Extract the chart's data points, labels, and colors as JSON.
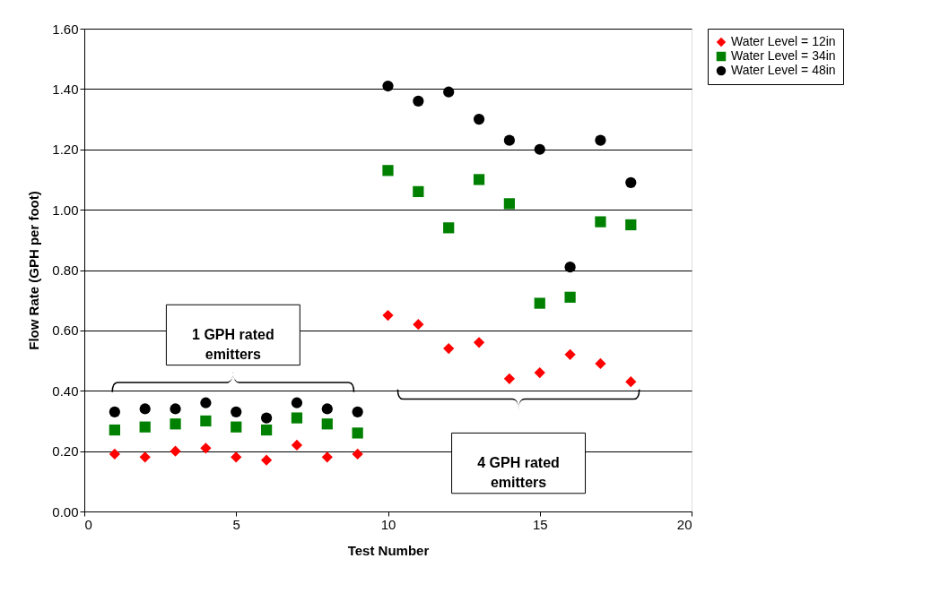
{
  "chart_data": {
    "type": "scatter",
    "xlabel": "Test Number",
    "ylabel": "Flow Rate (GPH per foot)",
    "x": [
      1,
      2,
      3,
      4,
      5,
      6,
      7,
      8,
      9,
      10,
      11,
      12,
      13,
      14,
      15,
      16,
      17,
      18
    ],
    "series": [
      {
        "name": "Water Level = 12in",
        "color": "#ff0000",
        "marker": "diamond",
        "values": [
          0.19,
          0.18,
          0.2,
          0.21,
          0.18,
          0.17,
          0.22,
          0.18,
          0.19,
          0.65,
          0.62,
          0.54,
          0.56,
          0.44,
          0.46,
          0.52,
          0.49,
          0.43
        ]
      },
      {
        "name": "Water Level = 34in",
        "color": "#008000",
        "marker": "square",
        "values": [
          0.27,
          0.28,
          0.29,
          0.3,
          0.28,
          0.27,
          0.31,
          0.29,
          0.26,
          1.13,
          1.06,
          0.94,
          1.1,
          1.02,
          0.69,
          0.71,
          0.96,
          0.95
        ]
      },
      {
        "name": "Water Level = 48in",
        "color": "#000000",
        "marker": "circle",
        "values": [
          0.33,
          0.34,
          0.34,
          0.36,
          0.33,
          0.31,
          0.36,
          0.34,
          0.33,
          1.41,
          1.36,
          1.39,
          1.3,
          1.23,
          1.2,
          0.81,
          1.23,
          1.09
        ]
      }
    ],
    "xlim": [
      0,
      20
    ],
    "xticks": [
      0,
      5,
      10,
      15,
      20
    ],
    "ylim": [
      0,
      1.6
    ],
    "yticks": [
      {
        "value": 0,
        "label": "0.00"
      },
      {
        "value": 0.2,
        "label": "0.20"
      },
      {
        "value": 0.4,
        "label": "0.40"
      },
      {
        "value": 0.6,
        "label": "0.60"
      },
      {
        "value": 0.8,
        "label": "0.80"
      },
      {
        "value": 1.0,
        "label": "1.00"
      },
      {
        "value": 1.2,
        "label": "1.20"
      },
      {
        "value": 1.4,
        "label": "1.40"
      },
      {
        "value": 1.6,
        "label": "1.60"
      }
    ],
    "grid": "y",
    "legend": "right",
    "annotations": [
      "1 GPH rated emitters",
      "4 GPH rated emitters"
    ]
  }
}
